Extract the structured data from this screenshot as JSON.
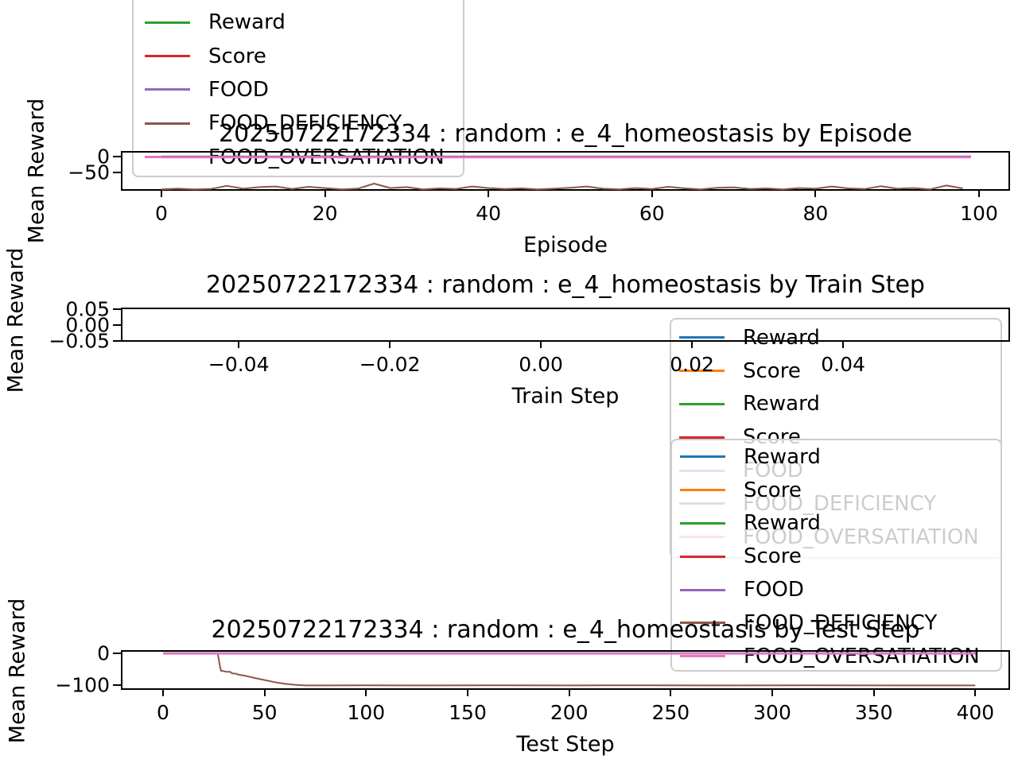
{
  "figure": {
    "background": "#ffffff"
  },
  "palette": {
    "blue": "#1f77b4",
    "orange": "#ff7f0e",
    "green": "#2ca02c",
    "red": "#d62728",
    "purple": "#9467bd",
    "brown": "#8c564b",
    "pink": "#e377c2",
    "text": "#000000",
    "legend_border": "#cccccc"
  },
  "legends": {
    "episode": {
      "entries": [
        {
          "label": "Reward",
          "color": "#2ca02c"
        },
        {
          "label": "Score",
          "color": "#d62728"
        },
        {
          "label": "FOOD",
          "color": "#9467bd"
        },
        {
          "label": "FOOD_DEFICIENCY",
          "color": "#8c564b"
        },
        {
          "label": "FOOD_OVERSATIATION",
          "color": "#e377c2"
        }
      ]
    },
    "back": {
      "entries": [
        {
          "label": "Reward",
          "color": "#1f77b4"
        },
        {
          "label": "Score",
          "color": "#ff7f0e"
        },
        {
          "label": "Reward",
          "color": "#2ca02c"
        },
        {
          "label": "Score",
          "color": "#d62728"
        },
        {
          "label": "FOOD",
          "color": "#9467bd"
        },
        {
          "label": "FOOD_DEFICIENCY",
          "color": "#8c564b"
        },
        {
          "label": "FOOD_OVERSATIATION",
          "color": "#e377c2"
        }
      ]
    },
    "front": {
      "entries": [
        {
          "label": "Reward",
          "color": "#1f77b4"
        },
        {
          "label": "Score",
          "color": "#ff7f0e"
        },
        {
          "label": "Reward",
          "color": "#2ca02c"
        },
        {
          "label": "Score",
          "color": "#d62728"
        },
        {
          "label": "FOOD",
          "color": "#9467bd"
        },
        {
          "label": "FOOD_DEFICIENCY",
          "color": "#8c564b"
        },
        {
          "label": "FOOD_OVERSATIATION",
          "color": "#e377c2"
        }
      ]
    }
  },
  "chart_data": [
    {
      "type": "line",
      "title": "20250722172334 : random : e_4_homeostasis by Episode",
      "xlabel": "Episode",
      "ylabel": "Mean Reward",
      "xlim": [
        -5,
        104
      ],
      "ylim": [
        -107.5,
        17.5
      ],
      "grid": false,
      "legend_position": "upper-left-outside",
      "xticks": [
        {
          "v": 0,
          "label": "0"
        },
        {
          "v": 20,
          "label": "20"
        },
        {
          "v": 40,
          "label": "40"
        },
        {
          "v": 60,
          "label": "60"
        },
        {
          "v": 80,
          "label": "80"
        },
        {
          "v": 100,
          "label": "100"
        }
      ],
      "yticks": [
        {
          "v": 0,
          "label": "0"
        },
        {
          "v": -50,
          "label": "−50"
        }
      ],
      "series": [
        {
          "name": "Reward",
          "color": "#2ca02c",
          "lw": 2,
          "x": [
            0,
            99
          ],
          "y": [
            0,
            0
          ]
        },
        {
          "name": "Score",
          "color": "#d62728",
          "lw": 2,
          "x": [
            0,
            99
          ],
          "y": [
            0,
            0
          ]
        },
        {
          "name": "FOOD",
          "color": "#9467bd",
          "lw": 2,
          "x": [
            0,
            99
          ],
          "y": [
            0.5,
            0.5
          ]
        },
        {
          "name": "FOOD_DEFICIENCY",
          "color": "#8c564b",
          "lw": 2,
          "x": [
            0,
            2,
            4,
            6,
            8,
            10,
            12,
            14,
            16,
            18,
            20,
            22,
            24,
            26,
            28,
            30,
            32,
            34,
            36,
            38,
            40,
            42,
            44,
            46,
            48,
            50,
            52,
            54,
            56,
            58,
            60,
            62,
            64,
            66,
            68,
            70,
            72,
            74,
            76,
            78,
            80,
            82,
            84,
            86,
            88,
            90,
            92,
            94,
            96,
            98
          ],
          "y": [
            -103,
            -101,
            -103,
            -102,
            -92,
            -101,
            -96,
            -94,
            -102,
            -95,
            -99,
            -103,
            -101,
            -85,
            -99,
            -96,
            -103,
            -100,
            -102,
            -94,
            -99,
            -102,
            -100,
            -103,
            -101,
            -98,
            -94,
            -101,
            -103,
            -99,
            -102,
            -95,
            -100,
            -103,
            -98,
            -97,
            -102,
            -100,
            -103,
            -99,
            -101,
            -94,
            -100,
            -102,
            -93,
            -101,
            -99,
            -103,
            -91,
            -100
          ]
        },
        {
          "name": "FOOD_OVERSATIATION",
          "color": "#e377c2",
          "lw": 2.5,
          "x": [
            0,
            99
          ],
          "y": [
            -2.5,
            -2.5
          ]
        }
      ]
    },
    {
      "type": "line",
      "title": "20250722172334 : random : e_4_homeostasis by Train Step",
      "xlabel": "Train Step",
      "ylabel": "Mean Reward",
      "xlim": [
        -0.0556,
        0.0621
      ],
      "ylim": [
        -0.0525,
        0.055
      ],
      "grid": false,
      "note": "empty axes - no data plotted",
      "xticks": [
        {
          "v": -0.04,
          "label": "−0.04"
        },
        {
          "v": -0.02,
          "label": "−0.02"
        },
        {
          "v": 0,
          "label": "0.00"
        },
        {
          "v": 0.02,
          "label": "0.02"
        },
        {
          "v": 0.04,
          "label": "0.04"
        }
      ],
      "yticks": [
        {
          "v": 0.05,
          "label": "0.05"
        },
        {
          "v": 0,
          "label": "0.00"
        },
        {
          "v": -0.05,
          "label": "−0.05"
        }
      ],
      "series": []
    },
    {
      "type": "line",
      "title": "20250722172334 : random : e_4_homeostasis by Test Step",
      "xlabel": "Test Step",
      "ylabel": "Mean Reward",
      "xlim": [
        -20.8,
        417.2
      ],
      "ylim": [
        -115,
        10
      ],
      "grid": false,
      "legend_position": "lower-right-overlapping",
      "xticks": [
        {
          "v": 0,
          "label": "0"
        },
        {
          "v": 50,
          "label": "50"
        },
        {
          "v": 100,
          "label": "100"
        },
        {
          "v": 150,
          "label": "150"
        },
        {
          "v": 200,
          "label": "200"
        },
        {
          "v": 250,
          "label": "250"
        },
        {
          "v": 300,
          "label": "300"
        },
        {
          "v": 350,
          "label": "350"
        },
        {
          "v": 400,
          "label": "400"
        }
      ],
      "yticks": [
        {
          "v": 0,
          "label": "0"
        },
        {
          "v": -100,
          "label": "−100"
        }
      ],
      "series": [
        {
          "name": "Reward",
          "color": "#1f77b4",
          "lw": 2,
          "x": [
            0,
            400
          ],
          "y": [
            0,
            0
          ]
        },
        {
          "name": "Score",
          "color": "#ff7f0e",
          "lw": 2,
          "x": [
            0,
            400
          ],
          "y": [
            0,
            0
          ]
        },
        {
          "name": "Reward",
          "color": "#2ca02c",
          "lw": 2,
          "x": [
            0,
            400
          ],
          "y": [
            0,
            0
          ]
        },
        {
          "name": "Score",
          "color": "#d62728",
          "lw": 2,
          "x": [
            0,
            400
          ],
          "y": [
            0,
            0
          ]
        },
        {
          "name": "FOOD",
          "color": "#9467bd",
          "lw": 2,
          "x": [
            0,
            400
          ],
          "y": [
            1,
            1
          ]
        },
        {
          "name": "FOOD_DEFICIENCY",
          "color": "#8c564b",
          "lw": 2,
          "x": [
            0,
            26,
            27,
            28,
            28.5,
            29,
            31,
            33,
            34,
            36,
            37,
            40,
            42,
            44,
            47,
            50,
            53,
            56,
            60,
            65,
            70,
            80,
            100,
            130,
            160,
            200,
            240,
            280,
            320,
            360,
            400
          ],
          "y": [
            0,
            0,
            -2,
            -40,
            -55,
            -55,
            -58,
            -58,
            -63,
            -64,
            -67,
            -70,
            -73,
            -76,
            -80,
            -84,
            -88,
            -92,
            -96,
            -99,
            -101,
            -101,
            -100.5,
            -101,
            -100.5,
            -101,
            -100.5,
            -101,
            -100.5,
            -101,
            -101
          ]
        },
        {
          "name": "FOOD_OVERSATIATION",
          "color": "#e377c2",
          "lw": 2.5,
          "x": [
            0,
            400
          ],
          "y": [
            -1,
            -1
          ]
        }
      ]
    }
  ]
}
